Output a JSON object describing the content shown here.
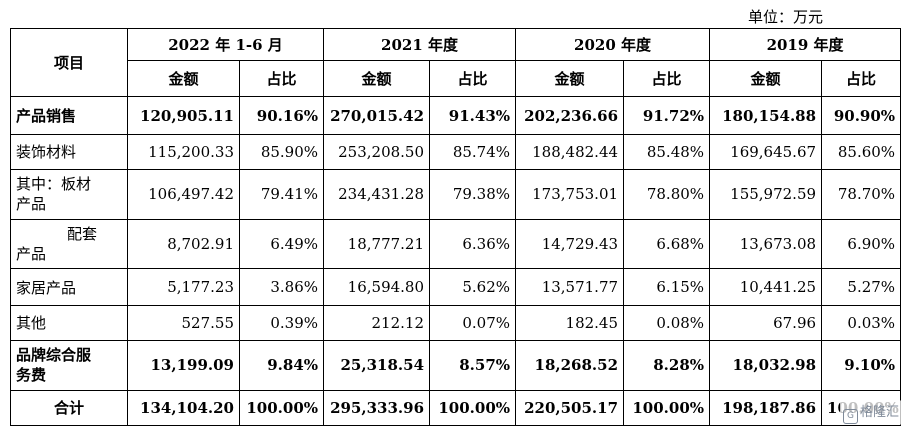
{
  "unit_label": "单位：万元",
  "header": {
    "item": "项目",
    "periods": [
      "2022 年 1-6 月",
      "2021 年度",
      "2020 年度",
      "2019 年度"
    ],
    "amount": "金额",
    "ratio": "占比"
  },
  "rows": [
    {
      "label": "产品销售",
      "values": [
        "120,905.11",
        "90.16%",
        "270,015.42",
        "91.43%",
        "202,236.66",
        "91.72%",
        "180,154.88",
        "90.90%"
      ]
    },
    {
      "label": "装饰材料",
      "values": [
        "115,200.33",
        "85.90%",
        "253,208.50",
        "85.74%",
        "188,482.44",
        "85.48%",
        "169,645.67",
        "85.60%"
      ]
    },
    {
      "label_line1": "其中：板材",
      "label_line2": "产品",
      "values": [
        "106,497.42",
        "79.41%",
        "234,431.28",
        "79.38%",
        "173,753.01",
        "78.80%",
        "155,972.59",
        "78.70%"
      ]
    },
    {
      "label_line1": "配套",
      "label_line2": "产品",
      "values": [
        "8,702.91",
        "6.49%",
        "18,777.21",
        "6.36%",
        "14,729.43",
        "6.68%",
        "13,673.08",
        "6.90%"
      ]
    },
    {
      "label": "家居产品",
      "values": [
        "5,177.23",
        "3.86%",
        "16,594.80",
        "5.62%",
        "13,571.77",
        "6.15%",
        "10,441.25",
        "5.27%"
      ]
    },
    {
      "label": "其他",
      "values": [
        "527.55",
        "0.39%",
        "212.12",
        "0.07%",
        "182.45",
        "0.08%",
        "67.96",
        "0.03%"
      ]
    },
    {
      "label_line1": "品牌综合服",
      "label_line2": "务费",
      "values": [
        "13,199.09",
        "9.84%",
        "25,318.54",
        "8.57%",
        "18,268.52",
        "8.28%",
        "18,032.98",
        "9.10%"
      ]
    },
    {
      "label": "合计",
      "values": [
        "134,104.20",
        "100.00%",
        "295,333.96",
        "100.00%",
        "220,505.17",
        "100.00%",
        "198,187.86",
        "100.00%"
      ]
    }
  ],
  "watermark": {
    "icon": "watermark-logo-icon",
    "text": "格隆汇"
  }
}
